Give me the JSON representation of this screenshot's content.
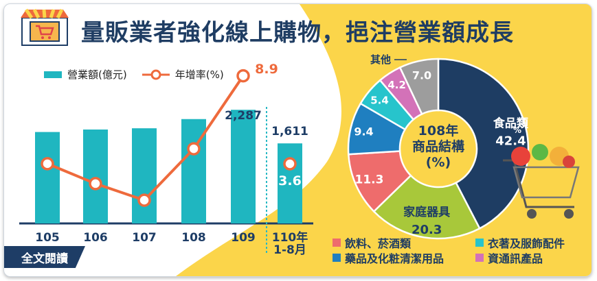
{
  "title": "量販業者強化線上購物，挹注營業額成長",
  "read_more": "全文閱讀",
  "legend": {
    "bar": "營業額(億元)",
    "line": "年增率(%)"
  },
  "colors": {
    "bar": "#1fb6c0",
    "line": "#ee6a3c",
    "title": "#1f3d63",
    "yellow": "#fbd54a",
    "navy": "#1e3d66"
  },
  "icons": [
    "shop-icon",
    "cart-icon"
  ],
  "chart_data": [
    {
      "type": "bar",
      "categories": [
        "105",
        "106",
        "107",
        "108",
        "109",
        "110年\n1-8月"
      ],
      "series": [
        {
          "name": "營業額(億元)",
          "values": [
            1840,
            1890,
            1915,
            2100,
            2287,
            1611
          ],
          "labeled": [
            "",
            "",
            "",
            "",
            "2,287",
            "1,611"
          ]
        },
        {
          "name": "年增率(%)",
          "type": "line",
          "values": [
            3.6,
            2.4,
            1.4,
            4.5,
            8.9,
            null
          ]
        }
      ],
      "point_labels": {
        "line_last": "8.9",
        "ytd_growth": "3.6"
      },
      "ytd_growth": 3.6,
      "dashed_separator_before": "110年\n1-8月"
    },
    {
      "type": "pie",
      "center_label": "108年\n商品結構\n(%)",
      "slices": [
        {
          "label": "食品類",
          "value": 42.4,
          "color": "#1e3d63"
        },
        {
          "label": "家庭器具",
          "value": 20.3,
          "color": "#a8c83a"
        },
        {
          "label": "飲料、菸酒類",
          "value": 11.3,
          "color": "#ee6c6c"
        },
        {
          "label": "藥品及化粧清潔用品",
          "value": 9.4,
          "color": "#1f7fc0"
        },
        {
          "label": "衣著及服飾配件",
          "value": 5.4,
          "color": "#27c4cc"
        },
        {
          "label": "資通訊產品",
          "value": 4.2,
          "color": "#d372b8"
        },
        {
          "label": "其他",
          "value": 7.0,
          "color": "#9d9d9d"
        }
      ],
      "unit_mark": "%"
    }
  ]
}
